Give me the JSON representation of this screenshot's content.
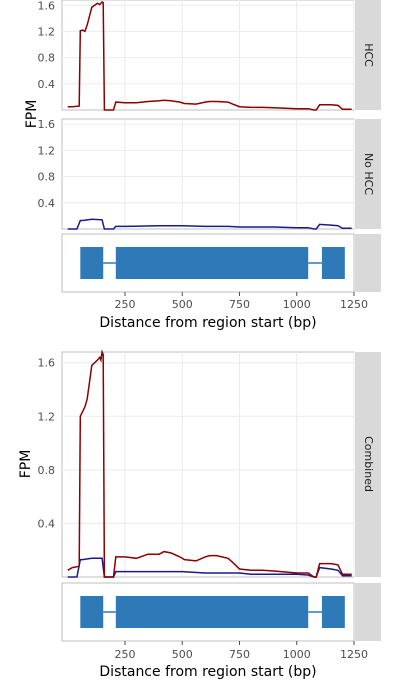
{
  "colors": {
    "hcc": "#8b0000",
    "nohcc": "#1a1a8c",
    "exon": "#2e7ab8",
    "strip": "#d9d9d9",
    "panel_border": "#bfbfbf",
    "grid": "#ebebeb"
  },
  "axes": {
    "ylabel": "FPM",
    "xlabel": "Distance from region start (bp)",
    "x_ticks": [
      "250",
      "500",
      "750",
      "1000",
      "1250"
    ],
    "y_ticks": [
      "0.4",
      "0.8",
      "1.2",
      "1.6"
    ]
  },
  "chart_data": [
    {
      "type": "line",
      "title": "",
      "facets": [
        "HCC",
        "No HCC"
      ],
      "xlabel": "Distance from region start (bp)",
      "ylabel": "FPM",
      "xlim": [
        -25,
        1250
      ],
      "ylim": [
        0,
        1.68
      ],
      "x_ticks": [
        250,
        500,
        750,
        1000,
        1250
      ],
      "y_ticks": [
        0.4,
        0.8,
        1.2,
        1.6
      ],
      "series": [
        {
          "facet": "HCC",
          "color": "#8b0000",
          "x": [
            0,
            20,
            50,
            55,
            65,
            75,
            85,
            105,
            130,
            140,
            150,
            155,
            160,
            165,
            170,
            180,
            200,
            210,
            250,
            300,
            350,
            400,
            420,
            450,
            490,
            510,
            560,
            600,
            620,
            650,
            700,
            720,
            750,
            800,
            850,
            900,
            1000,
            1050,
            1075,
            1085,
            1100,
            1150,
            1180,
            1200,
            1240
          ],
          "values": [
            0.05,
            0.05,
            0.06,
            1.21,
            1.22,
            1.2,
            1.3,
            1.57,
            1.63,
            1.61,
            1.65,
            1.64,
            0.0,
            0.0,
            0.0,
            0.0,
            0.0,
            0.12,
            0.11,
            0.11,
            0.13,
            0.14,
            0.15,
            0.14,
            0.12,
            0.1,
            0.09,
            0.12,
            0.13,
            0.13,
            0.12,
            0.09,
            0.05,
            0.04,
            0.04,
            0.035,
            0.02,
            0.02,
            0.0,
            0.0,
            0.08,
            0.08,
            0.07,
            0.01,
            0.01
          ]
        },
        {
          "facet": "No HCC",
          "color": "#1a1a8c",
          "x": [
            0,
            40,
            55,
            65,
            105,
            150,
            160,
            165,
            170,
            200,
            210,
            250,
            400,
            500,
            600,
            700,
            750,
            800,
            900,
            1000,
            1050,
            1075,
            1085,
            1100,
            1150,
            1180,
            1200,
            1240
          ],
          "values": [
            0.0,
            0.0,
            0.13,
            0.13,
            0.15,
            0.14,
            0.0,
            0.0,
            0.0,
            0.0,
            0.04,
            0.04,
            0.05,
            0.05,
            0.04,
            0.04,
            0.03,
            0.03,
            0.03,
            0.02,
            0.02,
            0.0,
            0.0,
            0.07,
            0.06,
            0.05,
            0.01,
            0.01
          ]
        }
      ],
      "exons": [
        [
          55,
          155
        ],
        [
          210,
          1050
        ],
        [
          1110,
          1210
        ]
      ]
    },
    {
      "type": "line",
      "title": "",
      "facets": [
        "Combined"
      ],
      "xlabel": "Distance from region start (bp)",
      "ylabel": "FPM",
      "xlim": [
        -25,
        1250
      ],
      "ylim": [
        0,
        1.68
      ],
      "x_ticks": [
        250,
        500,
        750,
        1000,
        1250
      ],
      "y_ticks": [
        0.4,
        0.8,
        1.2,
        1.6
      ],
      "series": [
        {
          "facet": "Combined",
          "color": "#8b0000",
          "x": [
            0,
            20,
            50,
            55,
            75,
            85,
            105,
            130,
            140,
            145,
            150,
            155,
            160,
            165,
            170,
            180,
            200,
            210,
            250,
            300,
            350,
            400,
            420,
            450,
            490,
            510,
            560,
            600,
            620,
            650,
            700,
            720,
            750,
            800,
            850,
            900,
            1000,
            1050,
            1075,
            1085,
            1100,
            1150,
            1180,
            1200,
            1240
          ],
          "values": [
            0.05,
            0.07,
            0.08,
            1.2,
            1.27,
            1.33,
            1.58,
            1.62,
            1.64,
            1.62,
            1.68,
            1.66,
            0.0,
            0.0,
            0.0,
            0.0,
            0.0,
            0.15,
            0.15,
            0.14,
            0.17,
            0.17,
            0.19,
            0.18,
            0.15,
            0.13,
            0.12,
            0.15,
            0.16,
            0.16,
            0.14,
            0.11,
            0.06,
            0.05,
            0.05,
            0.045,
            0.03,
            0.03,
            0.0,
            0.0,
            0.1,
            0.1,
            0.09,
            0.02,
            0.02
          ]
        },
        {
          "facet": "Combined",
          "color": "#1a1a8c",
          "x": [
            0,
            40,
            55,
            65,
            105,
            150,
            160,
            165,
            170,
            200,
            210,
            250,
            400,
            500,
            600,
            700,
            750,
            800,
            900,
            1000,
            1050,
            1075,
            1085,
            1100,
            1150,
            1180,
            1200,
            1240
          ],
          "values": [
            0.0,
            0.0,
            0.13,
            0.13,
            0.14,
            0.14,
            0.0,
            0.0,
            0.0,
            0.0,
            0.04,
            0.04,
            0.04,
            0.04,
            0.03,
            0.03,
            0.03,
            0.02,
            0.02,
            0.02,
            0.015,
            0.0,
            0.0,
            0.07,
            0.06,
            0.05,
            0.01,
            0.01
          ]
        }
      ],
      "exons": [
        [
          55,
          155
        ],
        [
          210,
          1050
        ],
        [
          1110,
          1210
        ]
      ]
    }
  ]
}
